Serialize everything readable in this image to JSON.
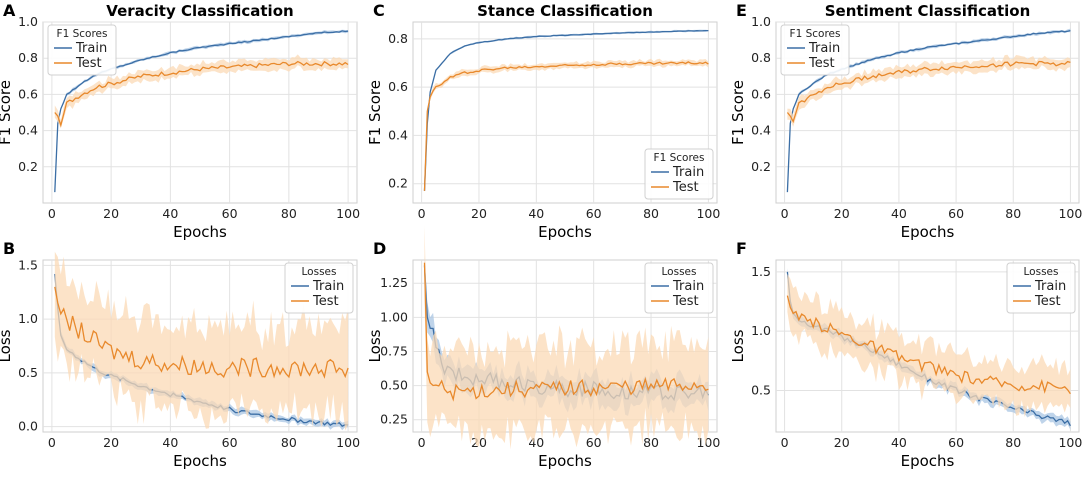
{
  "colors": {
    "train": "#3b6ea5",
    "test": "#e8892c",
    "train_band": "#aac5e3",
    "test_band": "#fbd9b5",
    "grid": "#e2e2e2"
  },
  "chart_data": [
    {
      "id": "A",
      "type": "line",
      "letter": "A",
      "title": "Veracity Classification",
      "xlabel": "Epochs",
      "ylabel": "F1 Score",
      "xlim": [
        -3,
        103
      ],
      "ylim": [
        0.0,
        1.0
      ],
      "xticks": [
        0,
        20,
        40,
        60,
        80,
        100
      ],
      "yticks": [
        0.2,
        0.4,
        0.6,
        0.8,
        1.0
      ],
      "ytick_labels": [
        "0.2",
        "0.4",
        "0.6",
        "0.8",
        "1.0"
      ],
      "legend": {
        "title": "F1 Scores",
        "position": "top-left",
        "entries": [
          "Train",
          "Test"
        ]
      },
      "series": [
        {
          "name": "Train",
          "color_key": "train",
          "band": 0.008,
          "noise": 0.003,
          "keypoints": [
            [
              1,
              0.06
            ],
            [
              2,
              0.44
            ],
            [
              3,
              0.52
            ],
            [
              5,
              0.6
            ],
            [
              10,
              0.66
            ],
            [
              15,
              0.71
            ],
            [
              20,
              0.74
            ],
            [
              30,
              0.79
            ],
            [
              40,
              0.83
            ],
            [
              50,
              0.86
            ],
            [
              60,
              0.88
            ],
            [
              70,
              0.9
            ],
            [
              80,
              0.92
            ],
            [
              90,
              0.94
            ],
            [
              100,
              0.95
            ]
          ]
        },
        {
          "name": "Test",
          "color_key": "test",
          "band": 0.03,
          "noise": 0.012,
          "keypoints": [
            [
              1,
              0.5
            ],
            [
              2,
              0.48
            ],
            [
              3,
              0.43
            ],
            [
              5,
              0.55
            ],
            [
              10,
              0.6
            ],
            [
              15,
              0.64
            ],
            [
              20,
              0.66
            ],
            [
              30,
              0.7
            ],
            [
              40,
              0.72
            ],
            [
              50,
              0.74
            ],
            [
              60,
              0.75
            ],
            [
              70,
              0.76
            ],
            [
              80,
              0.77
            ],
            [
              90,
              0.77
            ],
            [
              100,
              0.77
            ]
          ]
        }
      ]
    },
    {
      "id": "C",
      "type": "line",
      "letter": "C",
      "title": "Stance Classification",
      "xlabel": "Epochs",
      "ylabel": "F1 Score",
      "xlim": [
        -3,
        103
      ],
      "ylim": [
        0.12,
        0.87
      ],
      "xticks": [
        0,
        20,
        40,
        60,
        80,
        100
      ],
      "yticks": [
        0.2,
        0.4,
        0.6,
        0.8
      ],
      "ytick_labels": [
        "0.2",
        "0.4",
        "0.6",
        "0.8"
      ],
      "legend": {
        "title": "F1 Scores",
        "position": "bottom-right",
        "entries": [
          "Train",
          "Test"
        ]
      },
      "series": [
        {
          "name": "Train",
          "color_key": "train",
          "band": 0.004,
          "noise": 0.001,
          "keypoints": [
            [
              1,
              0.17
            ],
            [
              2,
              0.45
            ],
            [
              3,
              0.58
            ],
            [
              5,
              0.67
            ],
            [
              10,
              0.74
            ],
            [
              15,
              0.77
            ],
            [
              20,
              0.785
            ],
            [
              30,
              0.8
            ],
            [
              40,
              0.81
            ],
            [
              50,
              0.815
            ],
            [
              60,
              0.82
            ],
            [
              70,
              0.825
            ],
            [
              80,
              0.828
            ],
            [
              90,
              0.832
            ],
            [
              100,
              0.835
            ]
          ]
        },
        {
          "name": "Test",
          "color_key": "test",
          "band": 0.012,
          "noise": 0.005,
          "keypoints": [
            [
              1,
              0.17
            ],
            [
              2,
              0.5
            ],
            [
              3,
              0.56
            ],
            [
              5,
              0.6
            ],
            [
              10,
              0.64
            ],
            [
              15,
              0.66
            ],
            [
              20,
              0.67
            ],
            [
              30,
              0.68
            ],
            [
              40,
              0.685
            ],
            [
              50,
              0.69
            ],
            [
              60,
              0.695
            ],
            [
              70,
              0.697
            ],
            [
              80,
              0.699
            ],
            [
              90,
              0.7
            ],
            [
              100,
              0.7
            ]
          ]
        }
      ]
    },
    {
      "id": "E",
      "type": "line",
      "letter": "E",
      "title": "Sentiment Classification",
      "xlabel": "Epochs",
      "ylabel": "F1 Score",
      "xlim": [
        -3,
        103
      ],
      "ylim": [
        0.0,
        1.0
      ],
      "xticks": [
        0,
        20,
        40,
        60,
        80,
        100
      ],
      "yticks": [
        0.2,
        0.4,
        0.6,
        0.8,
        1.0
      ],
      "ytick_labels": [
        "0.2",
        "0.4",
        "0.6",
        "0.8",
        "1.0"
      ],
      "legend": {
        "title": "F1 Scores",
        "position": "top-left",
        "entries": [
          "Train",
          "Test"
        ]
      },
      "series": [
        {
          "name": "Train",
          "color_key": "train",
          "band": 0.008,
          "noise": 0.003,
          "keypoints": [
            [
              1,
              0.06
            ],
            [
              2,
              0.44
            ],
            [
              3,
              0.52
            ],
            [
              5,
              0.6
            ],
            [
              10,
              0.66
            ],
            [
              15,
              0.71
            ],
            [
              20,
              0.74
            ],
            [
              30,
              0.79
            ],
            [
              40,
              0.83
            ],
            [
              50,
              0.86
            ],
            [
              60,
              0.88
            ],
            [
              70,
              0.9
            ],
            [
              80,
              0.92
            ],
            [
              90,
              0.94
            ],
            [
              100,
              0.95
            ]
          ]
        },
        {
          "name": "Test",
          "color_key": "test",
          "band": 0.03,
          "noise": 0.012,
          "keypoints": [
            [
              1,
              0.5
            ],
            [
              2,
              0.48
            ],
            [
              3,
              0.45
            ],
            [
              5,
              0.55
            ],
            [
              10,
              0.6
            ],
            [
              15,
              0.64
            ],
            [
              20,
              0.66
            ],
            [
              30,
              0.7
            ],
            [
              40,
              0.72
            ],
            [
              50,
              0.74
            ],
            [
              60,
              0.75
            ],
            [
              70,
              0.76
            ],
            [
              80,
              0.77
            ],
            [
              90,
              0.77
            ],
            [
              100,
              0.77
            ]
          ]
        }
      ]
    },
    {
      "id": "B",
      "type": "line",
      "letter": "B",
      "title": "",
      "xlabel": "Epochs",
      "ylabel": "Loss",
      "xlim": [
        -3,
        103
      ],
      "ylim": [
        -0.05,
        1.55
      ],
      "xticks": [
        0,
        20,
        40,
        60,
        80,
        100
      ],
      "yticks": [
        0.0,
        0.5,
        1.0,
        1.5
      ],
      "ytick_labels": [
        "0.0",
        "0.5",
        "1.0",
        "1.5"
      ],
      "legend": {
        "title": "Losses",
        "position": "top-right",
        "entries": [
          "Train",
          "Test"
        ]
      },
      "series": [
        {
          "name": "Train",
          "color_key": "train",
          "band": 0.03,
          "noise": 0.02,
          "keypoints": [
            [
              1,
              1.42
            ],
            [
              2,
              1.1
            ],
            [
              3,
              0.85
            ],
            [
              5,
              0.72
            ],
            [
              10,
              0.62
            ],
            [
              15,
              0.53
            ],
            [
              20,
              0.47
            ],
            [
              30,
              0.38
            ],
            [
              40,
              0.3
            ],
            [
              50,
              0.23
            ],
            [
              60,
              0.16
            ],
            [
              70,
              0.11
            ],
            [
              80,
              0.07
            ],
            [
              90,
              0.04
            ],
            [
              100,
              0.01
            ]
          ]
        },
        {
          "name": "Test",
          "color_key": "test",
          "band": 0.4,
          "noise": 0.09,
          "keypoints": [
            [
              1,
              1.3
            ],
            [
              2,
              1.15
            ],
            [
              3,
              1.05
            ],
            [
              5,
              0.98
            ],
            [
              10,
              0.88
            ],
            [
              15,
              0.78
            ],
            [
              20,
              0.7
            ],
            [
              30,
              0.62
            ],
            [
              40,
              0.58
            ],
            [
              50,
              0.56
            ],
            [
              60,
              0.55
            ],
            [
              70,
              0.55
            ],
            [
              80,
              0.55
            ],
            [
              90,
              0.54
            ],
            [
              100,
              0.54
            ]
          ]
        }
      ]
    },
    {
      "id": "D",
      "type": "line",
      "letter": "D",
      "title": "",
      "xlabel": "Epochs",
      "ylabel": "Loss",
      "xlim": [
        -3,
        103
      ],
      "ylim": [
        0.16,
        1.42
      ],
      "xticks": [
        0,
        20,
        40,
        60,
        80,
        100
      ],
      "yticks": [
        0.25,
        0.5,
        0.75,
        1.0,
        1.25
      ],
      "ytick_labels": [
        "0.25",
        "0.50",
        "0.75",
        "1.00",
        "1.25"
      ],
      "legend": {
        "title": "Losses",
        "position": "top-right",
        "entries": [
          "Train",
          "Test"
        ]
      },
      "series": [
        {
          "name": "Train",
          "color_key": "train",
          "band": 0.09,
          "noise": 0.06,
          "keypoints": [
            [
              1,
              1.38
            ],
            [
              2,
              1.0
            ],
            [
              3,
              0.92
            ],
            [
              5,
              0.8
            ],
            [
              7,
              0.65
            ],
            [
              10,
              0.6
            ],
            [
              20,
              0.55
            ],
            [
              30,
              0.52
            ],
            [
              40,
              0.5
            ],
            [
              50,
              0.48
            ],
            [
              60,
              0.47
            ],
            [
              70,
              0.46
            ],
            [
              80,
              0.46
            ],
            [
              90,
              0.45
            ],
            [
              100,
              0.44
            ]
          ]
        },
        {
          "name": "Test",
          "color_key": "test",
          "band": 0.3,
          "noise": 0.06,
          "keypoints": [
            [
              1,
              1.4
            ],
            [
              2,
              0.6
            ],
            [
              3,
              0.52
            ],
            [
              5,
              0.5
            ],
            [
              10,
              0.45
            ],
            [
              20,
              0.46
            ],
            [
              30,
              0.47
            ],
            [
              40,
              0.47
            ],
            [
              50,
              0.48
            ],
            [
              60,
              0.48
            ],
            [
              70,
              0.49
            ],
            [
              80,
              0.49
            ],
            [
              90,
              0.5
            ],
            [
              100,
              0.5
            ]
          ]
        }
      ]
    },
    {
      "id": "F",
      "type": "line",
      "letter": "F",
      "title": "",
      "xlabel": "Epochs",
      "ylabel": "Loss",
      "xlim": [
        -3,
        103
      ],
      "ylim": [
        0.15,
        1.6
      ],
      "xticks": [
        0,
        20,
        40,
        60,
        80,
        100
      ],
      "yticks": [
        0.5,
        1.0,
        1.5
      ],
      "ytick_labels": [
        "0.5",
        "1.0",
        "1.5"
      ],
      "legend": {
        "title": "Losses",
        "position": "top-right",
        "entries": [
          "Train",
          "Test"
        ]
      },
      "series": [
        {
          "name": "Train",
          "color_key": "train",
          "band": 0.035,
          "noise": 0.025,
          "keypoints": [
            [
              1,
              1.5
            ],
            [
              2,
              1.25
            ],
            [
              3,
              1.15
            ],
            [
              5,
              1.1
            ],
            [
              10,
              1.05
            ],
            [
              15,
              1.0
            ],
            [
              20,
              0.95
            ],
            [
              30,
              0.85
            ],
            [
              40,
              0.72
            ],
            [
              50,
              0.6
            ],
            [
              60,
              0.5
            ],
            [
              70,
              0.42
            ],
            [
              80,
              0.35
            ],
            [
              90,
              0.28
            ],
            [
              100,
              0.22
            ]
          ]
        },
        {
          "name": "Test",
          "color_key": "test",
          "band": 0.18,
          "noise": 0.05,
          "keypoints": [
            [
              1,
              1.3
            ],
            [
              2,
              1.2
            ],
            [
              3,
              1.15
            ],
            [
              5,
              1.1
            ],
            [
              10,
              1.07
            ],
            [
              15,
              1.03
            ],
            [
              20,
              0.98
            ],
            [
              30,
              0.88
            ],
            [
              40,
              0.78
            ],
            [
              50,
              0.7
            ],
            [
              60,
              0.63
            ],
            [
              70,
              0.58
            ],
            [
              80,
              0.55
            ],
            [
              90,
              0.54
            ],
            [
              100,
              0.52
            ]
          ]
        }
      ]
    }
  ]
}
